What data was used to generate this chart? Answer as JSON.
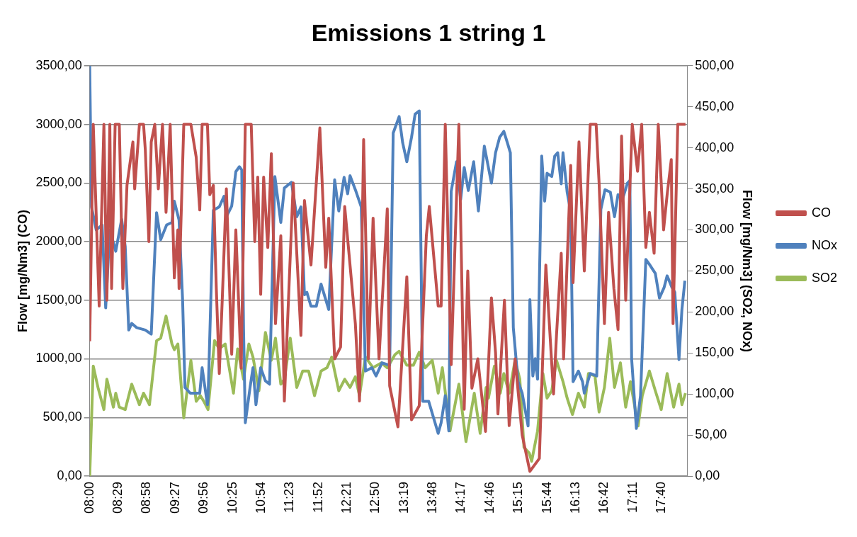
{
  "chart_data": {
    "type": "line",
    "title": "Emissions 1 string 1",
    "ylabel": "Flow [mg/Nm3] (CO)",
    "y2label": "Flow [mg/Nm3] (SO2, NOx)",
    "xlim": [
      8,
      18.1
    ],
    "xticks": [
      {
        "value": 8,
        "label": "08:00"
      },
      {
        "value": 8.4833,
        "label": "08:29"
      },
      {
        "value": 8.9667,
        "label": "08:58"
      },
      {
        "value": 9.45,
        "label": "09:27"
      },
      {
        "value": 9.9333,
        "label": "09:56"
      },
      {
        "value": 10.4167,
        "label": "10:25"
      },
      {
        "value": 10.9,
        "label": "10:54"
      },
      {
        "value": 11.3833,
        "label": "11:23"
      },
      {
        "value": 11.8667,
        "label": "11:52"
      },
      {
        "value": 12.35,
        "label": "12:21"
      },
      {
        "value": 12.8333,
        "label": "12:50"
      },
      {
        "value": 13.3167,
        "label": "13:19"
      },
      {
        "value": 13.8,
        "label": "13:48"
      },
      {
        "value": 14.2833,
        "label": "14:17"
      },
      {
        "value": 14.7667,
        "label": "14:46"
      },
      {
        "value": 15.25,
        "label": "15:15"
      },
      {
        "value": 15.7333,
        "label": "15:44"
      },
      {
        "value": 16.2167,
        "label": "16:13"
      },
      {
        "value": 16.7,
        "label": "16:42"
      },
      {
        "value": 17.1833,
        "label": "17:11"
      },
      {
        "value": 17.6667,
        "label": "17:40"
      }
    ],
    "ylim": [
      0,
      3500
    ],
    "yticks": [
      {
        "value": 0,
        "label": "0,00"
      },
      {
        "value": 500,
        "label": "500,00"
      },
      {
        "value": 1000,
        "label": "1000,00"
      },
      {
        "value": 1500,
        "label": "1500,00"
      },
      {
        "value": 2000,
        "label": "2000,00"
      },
      {
        "value": 2500,
        "label": "2500,00"
      },
      {
        "value": 3000,
        "label": "3000,00"
      },
      {
        "value": 3500,
        "label": "3500,00"
      }
    ],
    "y2lim": [
      0,
      500
    ],
    "y2ticks": [
      {
        "value": 0,
        "label": "0,00"
      },
      {
        "value": 50,
        "label": "50,00"
      },
      {
        "value": 100,
        "label": "100,00"
      },
      {
        "value": 150,
        "label": "150,00"
      },
      {
        "value": 200,
        "label": "200,00"
      },
      {
        "value": 250,
        "label": "250,00"
      },
      {
        "value": 300,
        "label": "300,00"
      },
      {
        "value": 350,
        "label": "350,00"
      },
      {
        "value": 400,
        "label": "400,00"
      },
      {
        "value": 450,
        "label": "450,00"
      },
      {
        "value": 500,
        "label": "500,00"
      }
    ],
    "grid": "y",
    "legend": "right",
    "marker": "none",
    "line_style": "solid",
    "series": [
      {
        "name": "CO",
        "color": "#c0504d",
        "x": [
          8.0,
          8.06,
          8.16,
          8.24,
          8.29,
          8.34,
          8.37,
          8.43,
          8.5,
          8.56,
          8.63,
          8.73,
          8.76,
          8.84,
          8.91,
          8.94,
          9.0,
          9.04,
          9.1,
          9.16,
          9.23,
          9.29,
          9.36,
          9.43,
          9.49,
          9.51,
          9.59,
          9.71,
          9.8,
          9.86,
          9.9,
          9.99,
          10.03,
          10.09,
          10.14,
          10.19,
          10.24,
          10.31,
          10.4,
          10.47,
          10.56,
          10.63,
          10.73,
          10.79,
          10.84,
          10.89,
          10.94,
          11.01,
          11.07,
          11.14,
          11.23,
          11.29,
          11.44,
          11.57,
          11.63,
          11.74,
          11.89,
          11.99,
          12.04,
          12.14,
          12.24,
          12.31,
          12.49,
          12.56,
          12.63,
          12.71,
          12.79,
          12.89,
          13.03,
          13.07,
          13.21,
          13.36,
          13.44,
          13.57,
          13.69,
          13.74,
          13.89,
          13.94,
          14.01,
          14.11,
          14.24,
          14.33,
          14.39,
          14.46,
          14.56,
          14.69,
          14.79,
          14.86,
          14.9,
          15.01,
          15.09,
          15.19,
          15.31,
          15.44,
          15.6,
          15.71,
          15.84,
          15.89,
          15.97,
          16.01,
          16.13,
          16.17,
          16.27,
          16.36,
          16.46,
          16.56,
          16.61,
          16.7,
          16.77,
          16.86,
          16.93,
          16.99,
          17.06,
          17.17,
          17.26,
          17.33,
          17.4,
          17.46,
          17.54,
          17.61,
          17.7,
          17.76,
          17.83,
          17.86,
          17.94,
          18.07
        ],
        "values": [
          1150,
          3000,
          1450,
          3000,
          1500,
          3000,
          1600,
          3000,
          3000,
          1600,
          2480,
          2850,
          2450,
          3000,
          3000,
          2780,
          2000,
          2850,
          3000,
          2450,
          3000,
          2250,
          3000,
          1690,
          2100,
          1600,
          3000,
          3000,
          2720,
          2270,
          3000,
          3000,
          2400,
          2480,
          1600,
          875,
          1500,
          2450,
          1040,
          2100,
          920,
          3000,
          3000,
          2000,
          2550,
          1550,
          2550,
          1950,
          2750,
          1300,
          2050,
          640,
          2500,
          1200,
          2350,
          1800,
          2970,
          1780,
          2200,
          1000,
          1100,
          2300,
          1300,
          640,
          2870,
          1000,
          2200,
          1000,
          2280,
          770,
          420,
          1700,
          480,
          600,
          2050,
          2300,
          1450,
          1450,
          3000,
          950,
          3000,
          570,
          1750,
          750,
          1000,
          380,
          1520,
          1050,
          530,
          1500,
          430,
          1000,
          350,
          40,
          150,
          1800,
          700,
          1200,
          1900,
          1000,
          2650,
          1650,
          2850,
          1750,
          3000,
          3000,
          2500,
          1300,
          2250,
          1600,
          1250,
          2900,
          1500,
          3000,
          2600,
          3000,
          1950,
          2250,
          1900,
          3000,
          2100,
          2400,
          2700,
          1300,
          3000,
          3000
        ]
      },
      {
        "name": "NOx",
        "color": "#4f81bd",
        "axis": "y2",
        "x": [
          8.0,
          8.03,
          8.11,
          8.21,
          8.27,
          8.34,
          8.44,
          8.54,
          8.6,
          8.66,
          8.71,
          8.79,
          8.94,
          9.04,
          9.13,
          9.2,
          9.3,
          9.39,
          9.43,
          9.51,
          9.57,
          9.61,
          9.7,
          9.77,
          9.86,
          9.9,
          9.99,
          10.0,
          10.09,
          10.19,
          10.27,
          10.31,
          10.4,
          10.47,
          10.53,
          10.57,
          10.6,
          10.63,
          10.71,
          10.76,
          10.81,
          10.89,
          10.97,
          11.04,
          11.13,
          11.23,
          11.29,
          11.41,
          11.5,
          11.57,
          11.63,
          11.67,
          11.74,
          11.83,
          11.91,
          12.04,
          12.14,
          12.21,
          12.3,
          12.36,
          12.4,
          12.5,
          12.59,
          12.66,
          12.77,
          12.84,
          12.94,
          13.07,
          13.13,
          13.23,
          13.29,
          13.36,
          13.44,
          13.5,
          13.57,
          13.63,
          13.73,
          13.89,
          13.94,
          14.01,
          14.07,
          14.11,
          14.2,
          14.27,
          14.33,
          14.4,
          14.49,
          14.57,
          14.67,
          14.79,
          14.86,
          14.93,
          15.0,
          15.06,
          15.11,
          15.16,
          15.24,
          15.31,
          15.41,
          15.44,
          15.49,
          15.53,
          15.57,
          15.64,
          15.69,
          15.73,
          15.81,
          15.86,
          15.91,
          15.97,
          16.0,
          16.07,
          16.13,
          16.17,
          16.26,
          16.33,
          16.36,
          16.46,
          16.57,
          16.64,
          16.71,
          16.8,
          16.87,
          16.93,
          17.0,
          17.09,
          17.13,
          17.16,
          17.24,
          17.31,
          17.4,
          17.47,
          17.56,
          17.63,
          17.71,
          17.76,
          17.84,
          17.89,
          17.96,
          18.01,
          18.06
        ],
        "values": [
          500,
          328,
          300,
          306,
          205,
          300,
          274,
          313,
          280,
          178,
          186,
          181,
          178,
          173,
          321,
          288,
          306,
          309,
          335,
          312,
          215,
          108,
          101,
          101,
          101,
          132,
          87,
          95,
          324,
          328,
          341,
          316,
          329,
          371,
          377,
          373,
          180,
          65,
          108,
          132,
          87,
          132,
          116,
          112,
          365,
          309,
          351,
          358,
          316,
          328,
          221,
          224,
          207,
          207,
          234,
          203,
          361,
          323,
          364,
          344,
          366,
          347,
          328,
          128,
          132,
          122,
          138,
          135,
          418,
          438,
          406,
          383,
          413,
          441,
          445,
          91,
          91,
          52,
          65,
          98,
          55,
          347,
          383,
          337,
          376,
          348,
          383,
          323,
          402,
          357,
          394,
          413,
          420,
          406,
          394,
          181,
          115,
          101,
          61,
          215,
          122,
          143,
          118,
          390,
          335,
          369,
          365,
          390,
          394,
          356,
          394,
          346,
          322,
          115,
          128,
          115,
          101,
          125,
          122,
          325,
          349,
          346,
          316,
          343,
          336,
          357,
          360,
          143,
          58,
          98,
          264,
          257,
          247,
          217,
          230,
          244,
          230,
          224,
          142,
          203,
          238
        ]
      },
      {
        "name": "SO2",
        "color": "#9bbb59",
        "axis": "y2",
        "x": [
          8.0,
          8.06,
          8.14,
          8.24,
          8.29,
          8.4,
          8.44,
          8.5,
          8.6,
          8.71,
          8.84,
          8.91,
          9.01,
          9.13,
          9.2,
          9.29,
          9.39,
          9.43,
          9.49,
          9.59,
          9.71,
          9.8,
          9.87,
          9.93,
          10.0,
          10.11,
          10.19,
          10.29,
          10.43,
          10.5,
          10.6,
          10.69,
          10.76,
          10.86,
          10.97,
          11.07,
          11.14,
          11.23,
          11.29,
          11.39,
          11.5,
          11.6,
          11.7,
          11.8,
          11.91,
          12.01,
          12.09,
          12.21,
          12.31,
          12.4,
          12.49,
          12.56,
          12.66,
          12.79,
          12.93,
          13.03,
          13.16,
          13.23,
          13.36,
          13.47,
          13.57,
          13.67,
          13.79,
          13.89,
          13.96,
          14.09,
          14.24,
          14.36,
          14.5,
          14.6,
          14.7,
          14.74,
          14.84,
          14.94,
          15.0,
          15.09,
          15.19,
          15.27,
          15.34,
          15.43,
          15.47,
          15.57,
          15.66,
          15.73,
          15.81,
          15.89,
          16.0,
          16.07,
          16.16,
          16.26,
          16.36,
          16.43,
          16.54,
          16.61,
          16.7,
          16.79,
          16.87,
          16.97,
          17.06,
          17.14,
          17.27,
          17.34,
          17.46,
          17.56,
          17.66,
          17.76,
          17.87,
          17.96,
          18.01,
          18.07
        ],
        "values": [
          0,
          134,
          108,
          81,
          118,
          84,
          101,
          84,
          81,
          112,
          87,
          101,
          87,
          165,
          168,
          195,
          161,
          154,
          161,
          71,
          141,
          91,
          98,
          91,
          81,
          165,
          155,
          161,
          101,
          155,
          118,
          161,
          145,
          104,
          175,
          141,
          168,
          112,
          118,
          168,
          108,
          128,
          128,
          98,
          128,
          132,
          145,
          104,
          118,
          108,
          121,
          98,
          145,
          132,
          138,
          132,
          148,
          152,
          135,
          135,
          151,
          132,
          141,
          101,
          132,
          55,
          112,
          42,
          101,
          52,
          108,
          95,
          134,
          101,
          125,
          101,
          141,
          118,
          35,
          28,
          18,
          55,
          125,
          95,
          104,
          141,
          115,
          95,
          75,
          101,
          84,
          125,
          122,
          78,
          108,
          168,
          108,
          138,
          84,
          115,
          61,
          98,
          128,
          104,
          81,
          125,
          84,
          112,
          87,
          101
        ]
      }
    ]
  }
}
